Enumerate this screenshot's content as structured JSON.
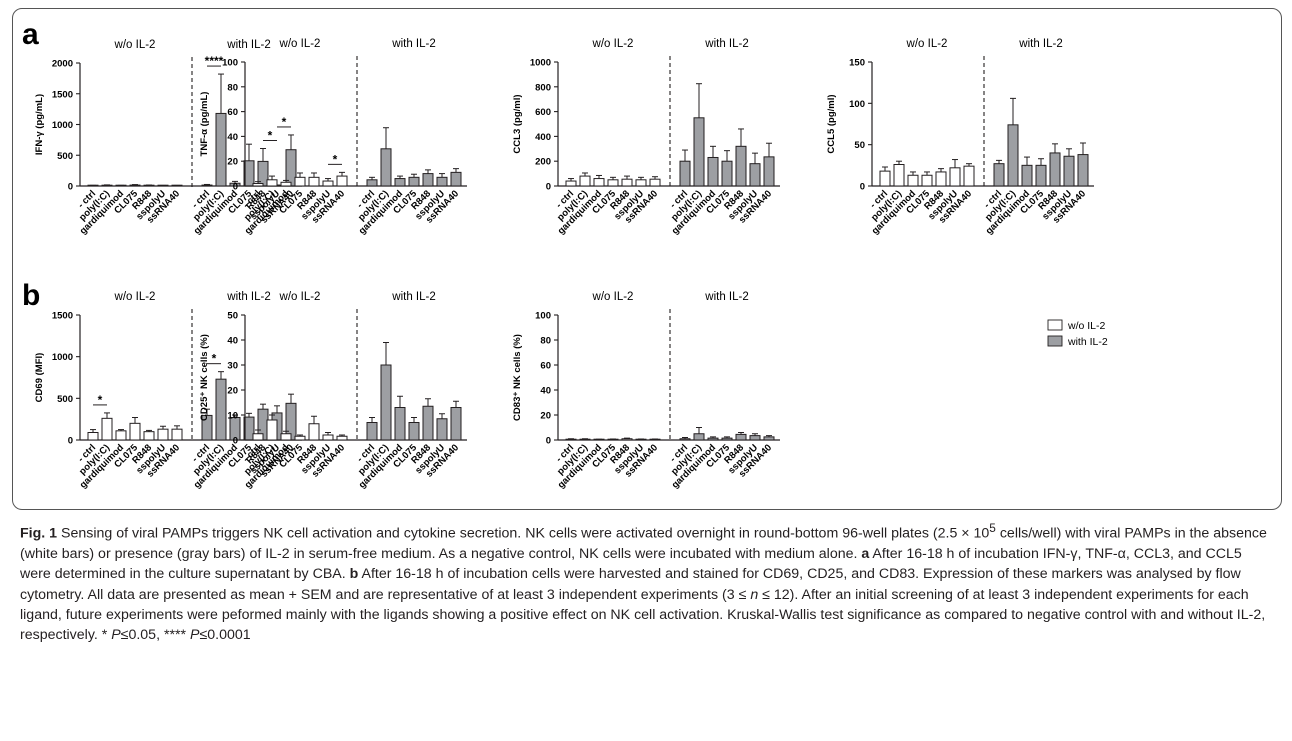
{
  "panel_labels": {
    "a": "a",
    "b": "b"
  },
  "group_labels": {
    "without": "w/o IL-2",
    "with": "with IL-2"
  },
  "legend": {
    "without": "w/o IL-2",
    "with": "with IL-2"
  },
  "colors": {
    "without": "#ffffff",
    "with": "#9d9fa3",
    "stroke": "#231f20"
  },
  "chart_data": [
    {
      "type": "bar",
      "panel": "a",
      "ylabel": "IFN-γ (pg/mL)",
      "ylim": [
        0,
        2000
      ],
      "yticks": [
        0,
        500,
        1000,
        1500,
        2000
      ],
      "categories": [
        "- ctrl",
        "poly(I:C)",
        "gardiquimod",
        "CL075",
        "R848",
        "sspolyU",
        "ssRNA40"
      ],
      "series": [
        {
          "name": "w/o IL-2",
          "values": [
            5,
            10,
            5,
            15,
            8,
            5,
            5
          ],
          "errors": [
            5,
            8,
            5,
            8,
            8,
            4,
            4
          ]
        },
        {
          "name": "with IL-2",
          "values": [
            15,
            1180,
            45,
            410,
            400,
            10,
            590
          ],
          "errors": [
            10,
            640,
            30,
            270,
            210,
            6,
            240
          ]
        }
      ],
      "significance": [
        {
          "group": "with",
          "from": 0,
          "to": 1,
          "label": "****"
        },
        {
          "group": "with",
          "from": 4,
          "to": 5,
          "label": "*"
        },
        {
          "group": "with",
          "from": 5,
          "to": 6,
          "label": "*"
        }
      ]
    },
    {
      "type": "bar",
      "panel": "a",
      "ylabel": "TNF-α (pg/mL)",
      "ylim": [
        0,
        100
      ],
      "yticks": [
        0,
        20,
        40,
        60,
        80,
        100
      ],
      "categories": [
        "- ctrl",
        "poly(I:C)",
        "gardiquimod",
        "CL075",
        "R848",
        "sspolyU",
        "ssRNA40"
      ],
      "series": [
        {
          "name": "w/o IL-2",
          "values": [
            2,
            5,
            3,
            7,
            7,
            4,
            8
          ],
          "errors": [
            1.5,
            3,
            1.5,
            3.5,
            3.5,
            2,
            3
          ]
        },
        {
          "name": "with IL-2",
          "values": [
            5,
            30,
            6,
            7,
            10,
            7,
            11
          ],
          "errors": [
            2,
            17,
            2,
            2.5,
            3,
            3,
            3
          ]
        }
      ],
      "significance": [
        {
          "group": "without",
          "from": 5,
          "to": 6,
          "label": "*"
        }
      ]
    },
    {
      "type": "bar",
      "panel": "a",
      "ylabel": "CCL3 (pg/ml)",
      "ylim": [
        0,
        1000
      ],
      "yticks": [
        0,
        200,
        400,
        600,
        800,
        1000
      ],
      "categories": [
        "- ctrl",
        "poly(I:C)",
        "gardiquimod",
        "CL075",
        "R848",
        "sspolyU",
        "ssRNA40"
      ],
      "series": [
        {
          "name": "w/o IL-2",
          "values": [
            40,
            80,
            60,
            50,
            55,
            50,
            55
          ],
          "errors": [
            20,
            25,
            25,
            20,
            25,
            20,
            20
          ]
        },
        {
          "name": "with IL-2",
          "values": [
            200,
            550,
            230,
            200,
            320,
            180,
            235
          ],
          "errors": [
            90,
            275,
            90,
            85,
            140,
            85,
            110
          ]
        }
      ],
      "significance": []
    },
    {
      "type": "bar",
      "panel": "a",
      "ylabel": "CCL5 (pg/ml)",
      "ylim": [
        0,
        150
      ],
      "yticks": [
        0,
        50,
        100,
        150
      ],
      "categories": [
        "- ctrl",
        "poly(I:C)",
        "gardiquimod",
        "CL075",
        "R848",
        "sspolyU",
        "ssRNA40"
      ],
      "series": [
        {
          "name": "w/o IL-2",
          "values": [
            18,
            26,
            13,
            13,
            17,
            22,
            24
          ],
          "errors": [
            5,
            4,
            4,
            4,
            4,
            10,
            3
          ]
        },
        {
          "name": "with IL-2",
          "values": [
            27,
            74,
            25,
            25,
            40,
            36,
            38
          ],
          "errors": [
            4,
            32,
            10,
            8,
            11,
            9,
            14
          ]
        }
      ],
      "significance": []
    },
    {
      "type": "bar",
      "panel": "b",
      "ylabel": "CD69 (MFI)",
      "ylim": [
        0,
        1500
      ],
      "yticks": [
        0,
        500,
        1000,
        1500
      ],
      "categories": [
        "- ctrl",
        "poly(I:C)",
        "gardiquimod",
        "CL075",
        "R848",
        "sspolyU",
        "ssRNA40"
      ],
      "series": [
        {
          "name": "w/o IL-2",
          "values": [
            90,
            260,
            110,
            200,
            100,
            130,
            130
          ],
          "errors": [
            35,
            65,
            15,
            70,
            15,
            35,
            40
          ]
        },
        {
          "name": "with IL-2",
          "values": [
            295,
            730,
            270,
            275,
            370,
            325,
            440
          ],
          "errors": [
            75,
            90,
            30,
            45,
            60,
            85,
            110
          ]
        }
      ],
      "significance": [
        {
          "group": "without",
          "from": 0,
          "to": 1,
          "label": "*"
        },
        {
          "group": "with",
          "from": 0,
          "to": 1,
          "label": "*"
        }
      ]
    },
    {
      "type": "bar",
      "panel": "b",
      "ylabel": "CD25⁺ NK cells (%)",
      "ylim": [
        0,
        50
      ],
      "yticks": [
        0,
        10,
        20,
        30,
        40,
        50
      ],
      "categories": [
        "- ctrl",
        "poly(I:C)",
        "gardiquimod",
        "CL075",
        "R848",
        "sspolyU",
        "ssRNA40"
      ],
      "series": [
        {
          "name": "w/o IL-2",
          "values": [
            2.5,
            8,
            2.5,
            1.5,
            6.5,
            2,
            1.5
          ],
          "errors": [
            1.5,
            2,
            1,
            0.5,
            3,
            1,
            0.5
          ]
        },
        {
          "name": "with IL-2",
          "values": [
            7,
            30,
            13,
            7,
            13.5,
            8.5,
            13
          ],
          "errors": [
            2,
            9,
            4.5,
            2,
            3,
            2,
            2.5
          ]
        }
      ],
      "significance": []
    },
    {
      "type": "bar",
      "panel": "b",
      "ylabel": "CD83⁺ NK cells (%)",
      "ylim": [
        0,
        100
      ],
      "yticks": [
        0,
        20,
        40,
        60,
        80,
        100
      ],
      "categories": [
        "- ctrl",
        "poly(I:C)",
        "gardiquimod",
        "CL075",
        "R848",
        "sspolyU",
        "ssRNA40"
      ],
      "series": [
        {
          "name": "w/o IL-2",
          "values": [
            0.5,
            0.5,
            0.3,
            0.5,
            1,
            0.5,
            0.5
          ],
          "errors": [
            0.5,
            0.5,
            0.3,
            0.3,
            0.5,
            0.3,
            0.3
          ]
        },
        {
          "name": "with IL-2",
          "values": [
            1,
            5,
            1.5,
            1.5,
            4.5,
            3.5,
            2.5
          ],
          "errors": [
            1,
            5,
            1,
            1,
            1.5,
            1.5,
            1
          ]
        }
      ],
      "significance": []
    }
  ],
  "caption": {
    "fig_label": "Fig. 1",
    "p1": " Sensing of viral PAMPs triggers NK cell activation and cytokine secretion. NK cells were activated overnight in round-bottom 96-well plates (2.5 × 10",
    "p1_sup": "5",
    "p2": " cells/well) with viral PAMPs in the absence (white bars) or presence (gray bars) of IL-2 in serum-free medium. As a negative control, NK cells were incubated with medium alone. ",
    "a_label": "a",
    "a_text": " After 16-18 h of incubation IFN-γ, TNF-α, CCL3, and CCL5 were determined in the culture supernatant by CBA. ",
    "b_label": "b",
    "b_text": " After 16-18 h of incubation cells were harvested and stained for CD69, CD25, and CD83. Expression of these markers was analysed by flow cytometry. All data are presented as mean + SEM and are representative of at least 3 independent experiments (3 ≤ ",
    "n_sym": "n",
    "n_text": " ≤ 12). After an initial screening of at least 3 independent experiments for each ligand, future experiments were peformed mainly with the ligands showing a positive effect on NK cell activation. Kruskal-Wallis test significance as compared to negative control with and without IL-2, respectively. * ",
    "p_sym1": "P",
    "p_text1": "≤0.05, **** ",
    "p_sym2": "P",
    "p_text2": "≤0.0001"
  }
}
